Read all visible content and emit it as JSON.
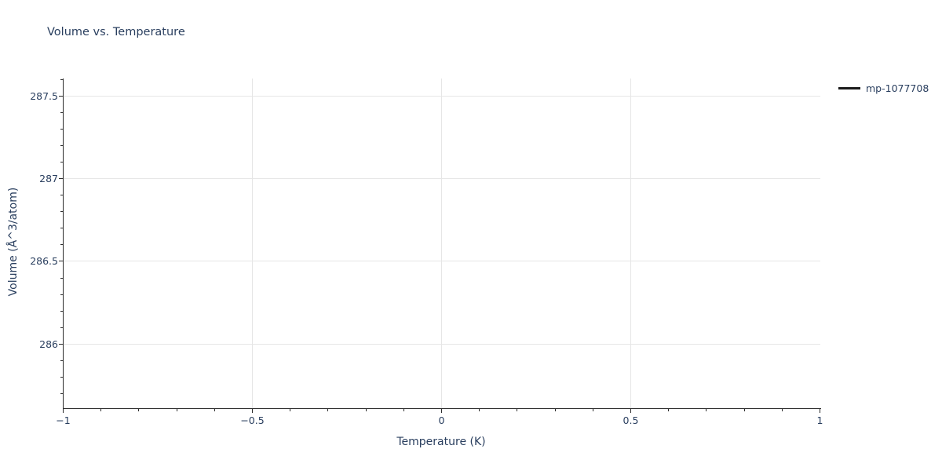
{
  "title": "Volume vs. Temperature",
  "colors": {
    "text": "#2a3f5f",
    "grid": "#e6e6e6",
    "axis_line": "#2c2c2c",
    "background": "#ffffff"
  },
  "legend": {
    "position": "top-right",
    "items": [
      {
        "label": "mp-1077708",
        "color": "#1a1a1a"
      }
    ]
  },
  "chart_data": {
    "type": "line",
    "title": "Volume vs. Temperature",
    "xlabel": "Temperature (K)",
    "ylabel": "Volume (Å^3/atom)",
    "xlim": [
      -1,
      1
    ],
    "ylim": [
      285.615,
      287.605
    ],
    "x_major_ticks": [
      -1,
      -0.5,
      0,
      0.5,
      1
    ],
    "x_tick_labels": [
      "−1",
      "−0.5",
      "0",
      "0.5",
      "1"
    ],
    "x_minor_step": 0.1,
    "y_major_ticks": [
      286,
      286.5,
      287,
      287.5
    ],
    "y_tick_labels": [
      "286",
      "286.5",
      "287",
      "287.5"
    ],
    "y_minor_step": 0.1,
    "grid": true,
    "grid_on_major_only": true,
    "series": [
      {
        "name": "mp-1077708",
        "color": "#1a1a1a",
        "line_width": 2,
        "x": [],
        "y": []
      }
    ]
  }
}
